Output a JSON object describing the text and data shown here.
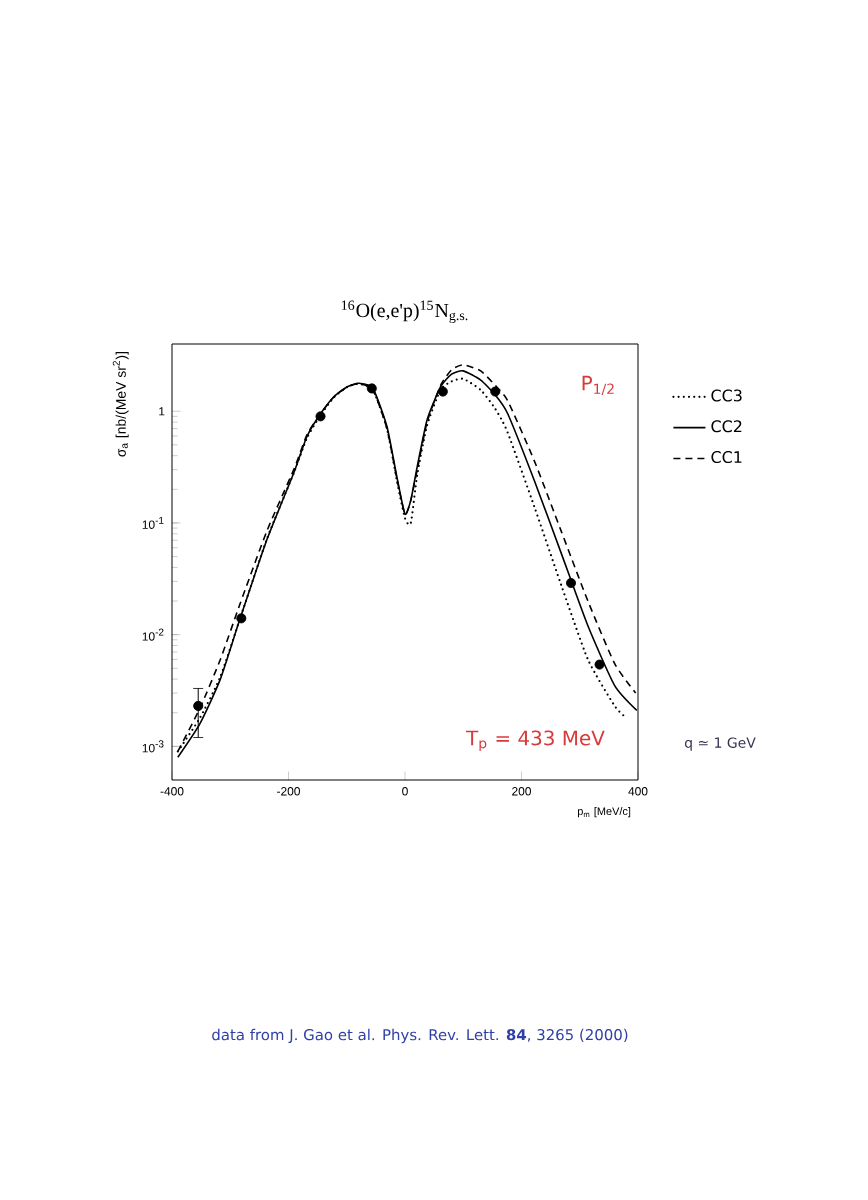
{
  "chart_data": {
    "type": "line",
    "title": "$^{16}$O(e,e'p)$^{15}$N$_{g.s.}$",
    "xlabel": "p$_{m}$ [MeV/c]",
    "ylabel": "σ$_{a}$ [nb/(MeV sr$^{2}$)]",
    "xlim": [
      -400,
      400
    ],
    "xticks": [
      -400,
      -200,
      0,
      200,
      400
    ],
    "ylim": [
      0.0005,
      4
    ],
    "yticks": [
      {
        "value": 0.001,
        "label": "10$^{-3}$"
      },
      {
        "value": 0.01,
        "label": "10$^{-2}$"
      },
      {
        "value": 0.1,
        "label": "10$^{-1}$"
      },
      1
    ],
    "log": "y",
    "grid": false,
    "legend": "right",
    "series": [
      {
        "type": "scatter",
        "marker": "circle",
        "color": "#000000",
        "x": [
          -355,
          -281,
          -145,
          -57,
          65,
          155,
          285,
          334
        ],
        "values": [
          0.0023,
          0.014,
          0.9,
          1.6,
          1.5,
          1.5,
          0.029,
          0.0054
        ],
        "errors": [
          [
            0.0012,
            0.0033
          ],
          null,
          null,
          null,
          null,
          null,
          null,
          null
        ]
      },
      {
        "name": "CC3",
        "line_style": "dotted",
        "color": "#000000",
        "x": [
          -390,
          -352,
          -317,
          -283,
          -237,
          -191,
          -168,
          -145,
          -122,
          -99,
          -79,
          -55,
          -31,
          -14,
          0,
          10,
          21,
          38,
          61,
          80,
          100,
          130,
          155,
          176,
          222,
          268,
          314,
          360,
          380
        ],
        "values": [
          0.0009,
          0.0018,
          0.0042,
          0.014,
          0.072,
          0.28,
          0.58,
          0.92,
          1.33,
          1.65,
          1.76,
          1.55,
          0.7,
          0.24,
          0.11,
          0.1,
          0.27,
          0.75,
          1.55,
          1.85,
          1.95,
          1.55,
          1.05,
          0.65,
          0.14,
          0.028,
          0.006,
          0.0023,
          0.0018
        ]
      },
      {
        "name": "CC2",
        "line_style": "solid",
        "color": "#000000",
        "x": [
          -390,
          -352,
          -317,
          -283,
          -237,
          -191,
          -168,
          -145,
          -122,
          -99,
          -79,
          -55,
          -31,
          -14,
          0,
          10,
          21,
          38,
          61,
          80,
          100,
          130,
          155,
          176,
          222,
          268,
          314,
          360,
          398
        ],
        "values": [
          0.0008,
          0.0016,
          0.004,
          0.014,
          0.071,
          0.28,
          0.6,
          0.95,
          1.35,
          1.66,
          1.78,
          1.6,
          0.73,
          0.26,
          0.12,
          0.16,
          0.32,
          0.84,
          1.65,
          2.15,
          2.3,
          1.9,
          1.4,
          0.96,
          0.24,
          0.054,
          0.012,
          0.0035,
          0.0021
        ]
      },
      {
        "name": "CC1",
        "line_style": "dashed",
        "color": "#000000",
        "x": [
          -390,
          -352,
          -317,
          -283,
          -237,
          -191,
          -168,
          -145,
          -122,
          -99,
          -79,
          -55,
          -31,
          -14,
          0,
          10,
          21,
          38,
          61,
          80,
          100,
          130,
          155,
          176,
          222,
          268,
          314,
          360,
          396
        ],
        "values": [
          0.0009,
          0.0022,
          0.006,
          0.019,
          0.085,
          0.3,
          0.62,
          0.95,
          1.35,
          1.65,
          1.76,
          1.55,
          0.7,
          0.25,
          0.12,
          0.16,
          0.3,
          0.8,
          1.7,
          2.35,
          2.6,
          2.3,
          1.7,
          1.25,
          0.36,
          0.085,
          0.02,
          0.0055,
          0.003
        ]
      }
    ],
    "annotations": [
      "P$_{1/2}$",
      "T$_{p}$ = 433 MeV",
      "q ≃ 1 GeV",
      "data from J. Gao et al. Phys. Rev. Lett. **84**, 3265 (2000)"
    ]
  }
}
